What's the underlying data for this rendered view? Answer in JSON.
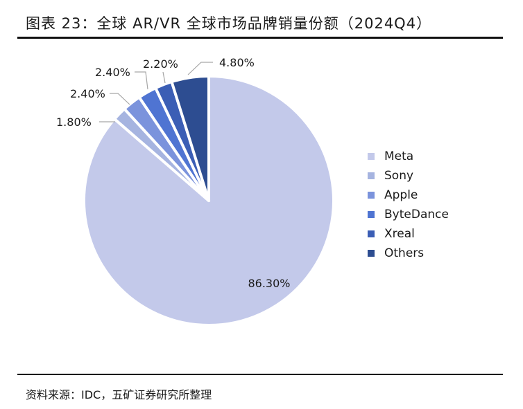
{
  "figure": {
    "title": "图表 23：全球 AR/VR 全球市场品牌销量份额（2024Q4）",
    "source": "资料来源：IDC，五矿证券研究所整理"
  },
  "chart_data": {
    "type": "pie",
    "title": "全球 AR/VR 全球市场品牌销量份额（2024Q4）",
    "categories": [
      "Meta",
      "Sony",
      "Apple",
      "ByteDance",
      "Xreal",
      "Others"
    ],
    "values": [
      86.3,
      1.8,
      2.4,
      2.4,
      2.2,
      4.8
    ],
    "labels": [
      "86.30%",
      "1.80%",
      "2.40%",
      "2.40%",
      "2.20%",
      "4.80%"
    ],
    "colors": [
      "#c3c9ea",
      "#a6b4e0",
      "#7b93dc",
      "#4f74d2",
      "#3b5eb5",
      "#2d4d91"
    ],
    "legend_position": "right"
  }
}
